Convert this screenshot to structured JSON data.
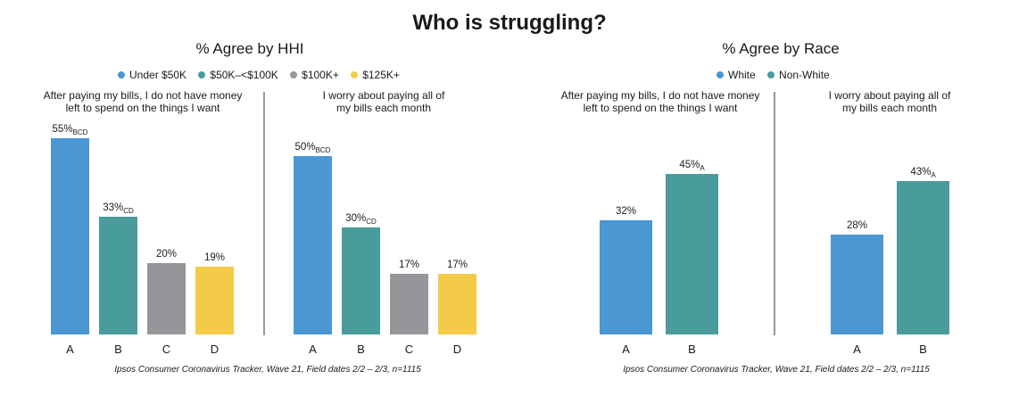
{
  "title": "Who is struggling?",
  "sections": [
    {
      "title": "% Agree by HHI",
      "legend": [
        {
          "label": "Under $50K",
          "color": "#4A97D2"
        },
        {
          "label": "$50K–<$100K",
          "color": "#4A9C9C"
        },
        {
          "label": "$100K+",
          "color": "#96969A"
        },
        {
          "label": "$125K+",
          "color": "#F4CB49"
        }
      ],
      "source": "Ipsos Consumer Coronavirus Tracker, Wave 21, Field dates 2/2 – 2/3, n=1115"
    },
    {
      "title": "% Agree by Race",
      "legend": [
        {
          "label": "White",
          "color": "#4A97D2"
        },
        {
          "label": "Non-White",
          "color": "#4A9C9C"
        }
      ],
      "source": "Ipsos Consumer Coronavirus Tracker, Wave 21, Field dates 2/2 – 2/3, n=1115"
    }
  ],
  "chart_data": [
    {
      "type": "bar",
      "title": "After paying my bills, I do not have money left to spend on the things I want",
      "title_lines": [
        "After paying my bills, I do not have money",
        "left to spend on the things I want"
      ],
      "categories": [
        "A",
        "B",
        "C",
        "D"
      ],
      "values": [
        55,
        33,
        20,
        19
      ],
      "value_labels": [
        "55%",
        "33%",
        "20%",
        "19%"
      ],
      "significance": [
        "BCD",
        "CD",
        "",
        ""
      ],
      "colors": [
        "#4A97D2",
        "#4A9C9C",
        "#96969A",
        "#F4CB49"
      ],
      "ylim": [
        0,
        55
      ]
    },
    {
      "type": "bar",
      "title": "I worry about paying all of my bills each month",
      "title_lines": [
        "I worry about paying all of",
        "my bills each month"
      ],
      "categories": [
        "A",
        "B",
        "C",
        "D"
      ],
      "values": [
        50,
        30,
        17,
        17
      ],
      "value_labels": [
        "50%",
        "30%",
        "17%",
        "17%"
      ],
      "significance": [
        "BCD",
        "CD",
        "",
        ""
      ],
      "colors": [
        "#4A97D2",
        "#4A9C9C",
        "#96969A",
        "#F4CB49"
      ],
      "ylim": [
        0,
        55
      ]
    },
    {
      "type": "bar",
      "title": "After paying my bills, I do not have money left to spend on the things I want",
      "title_lines": [
        "After paying my bills, I do not have money",
        "left to spend on the things I want"
      ],
      "categories": [
        "A",
        "B"
      ],
      "values": [
        32,
        45
      ],
      "value_labels": [
        "32%",
        "45%"
      ],
      "significance": [
        "",
        "A"
      ],
      "colors": [
        "#4A97D2",
        "#4A9C9C"
      ],
      "ylim": [
        0,
        55
      ]
    },
    {
      "type": "bar",
      "title": "I worry about paying all of my bills each month",
      "title_lines": [
        "I worry about paying all of",
        "my bills each month"
      ],
      "categories": [
        "A",
        "B"
      ],
      "values": [
        28,
        43
      ],
      "value_labels": [
        "28%",
        "43%"
      ],
      "significance": [
        "",
        "A"
      ],
      "colors": [
        "#4A97D2",
        "#4A9C9C"
      ],
      "ylim": [
        0,
        55
      ]
    }
  ]
}
